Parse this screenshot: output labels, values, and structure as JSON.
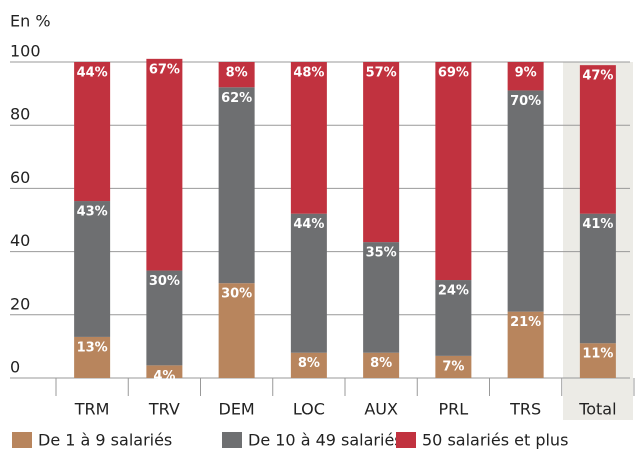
{
  "chart_data": {
    "type": "stacked_bar",
    "y_label": "En %",
    "categories": [
      "TRM",
      "TRV",
      "DEM",
      "LOC",
      "AUX",
      "PRL",
      "TRS",
      "Total"
    ],
    "series": [
      {
        "name": "De 1 à 9 salariés",
        "color": "#b8855d",
        "values": [
          13,
          4,
          30,
          8,
          8,
          7,
          21,
          11
        ],
        "value_labels": [
          "13%",
          "4%",
          "30%",
          "8%",
          "8%",
          "7%",
          "21%",
          "11%"
        ]
      },
      {
        "name": "De 10 à 49 salariés",
        "color": "#6e6f71",
        "values": [
          43,
          30,
          62,
          44,
          35,
          24,
          70,
          41
        ],
        "value_labels": [
          "43%",
          "30%",
          "62%",
          "44%",
          "35%",
          "24%",
          "70%",
          "41%"
        ]
      },
      {
        "name": "50 salariés et plus",
        "color": "#c1323f",
        "values": [
          44,
          67,
          8,
          48,
          57,
          69,
          9,
          47
        ],
        "value_labels": [
          "44%",
          "67%",
          "8%",
          "48%",
          "57%",
          "69%",
          "9%",
          "47%"
        ]
      }
    ],
    "ylim": [
      0,
      100
    ],
    "yticks": [
      0,
      20,
      40,
      60,
      80,
      100
    ],
    "grid": true,
    "legend": "bottom"
  }
}
